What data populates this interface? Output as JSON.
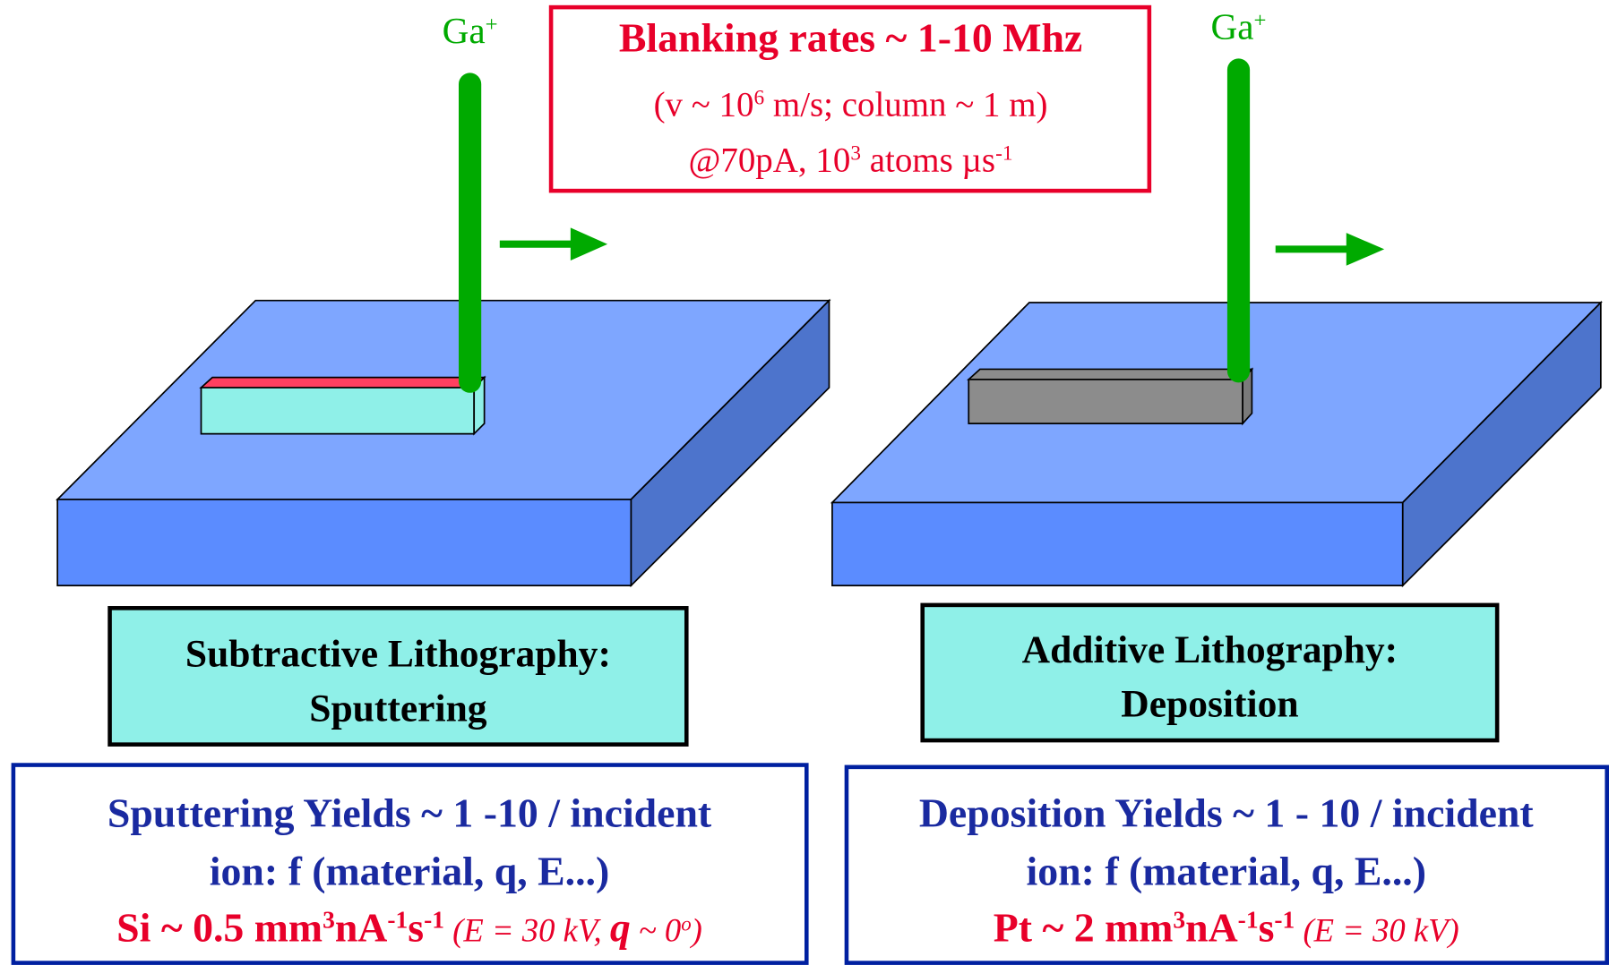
{
  "beams": [
    [
      {
        "text": "Ga",
        "style": "plain"
      },
      {
        "text": "+",
        "style": "sup"
      }
    ],
    [
      {
        "text": "Ga",
        "style": "plain"
      },
      {
        "text": "+",
        "style": "sup"
      }
    ]
  ],
  "blanking": [
    [
      {
        "text": "Blanking rates ~ 1-10 Mhz",
        "style": "bold"
      }
    ],
    [
      {
        "text": "(v ~ 10",
        "style": "plain"
      },
      {
        "text": "6",
        "style": "sup"
      },
      {
        "text": " m/s; column ~ 1 m)",
        "style": "plain"
      }
    ],
    [
      {
        "text": "@70pA, 10",
        "style": "plain"
      },
      {
        "text": "3",
        "style": "sup"
      },
      {
        "text": " atoms  µs",
        "style": "plain"
      },
      {
        "text": "-1",
        "style": "sup"
      }
    ]
  ],
  "panels": [
    {
      "title": [
        "Subtractive Lithography:",
        "Sputtering"
      ],
      "yields": [
        [
          {
            "text": "Sputtering Yields ~ 1 -10 / incident",
            "style": "bold"
          }
        ],
        [
          {
            "text": "ion:  f (material, q, E...)",
            "style": "bold"
          }
        ],
        [
          {
            "text": "Si ~ 0.5 mm",
            "style": "bold"
          },
          {
            "text": "3",
            "style": "boldsup"
          },
          {
            "text": "nA",
            "style": "bold"
          },
          {
            "text": "-1",
            "style": "boldsup"
          },
          {
            "text": "s",
            "style": "bold"
          },
          {
            "text": "-1",
            "style": "boldsup"
          },
          {
            "text": " (E = 30 kV, ",
            "style": "italic"
          },
          {
            "text": "q",
            "style": "bolditalic"
          },
          {
            "text": "  ~ 0",
            "style": "italic"
          },
          {
            "text": "o",
            "style": "italicsup"
          },
          {
            "text": ")",
            "style": "italic"
          }
        ]
      ]
    },
    {
      "title": [
        "Additive Lithography:",
        "Deposition"
      ],
      "yields": [
        [
          {
            "text": "Deposition Yields ~ 1 - 10 / incident",
            "style": "bold"
          }
        ],
        [
          {
            "text": "ion:  f (material, q, E...)",
            "style": "bold"
          }
        ],
        [
          {
            "text": "Pt ~ 2 mm",
            "style": "bold"
          },
          {
            "text": "3",
            "style": "boldsup"
          },
          {
            "text": "nA",
            "style": "bold"
          },
          {
            "text": "-1",
            "style": "boldsup"
          },
          {
            "text": "s",
            "style": "bold"
          },
          {
            "text": "-1",
            "style": "boldsup"
          },
          {
            "text": " (E = 30 kV)",
            "style": "italic"
          }
        ]
      ]
    }
  ]
}
